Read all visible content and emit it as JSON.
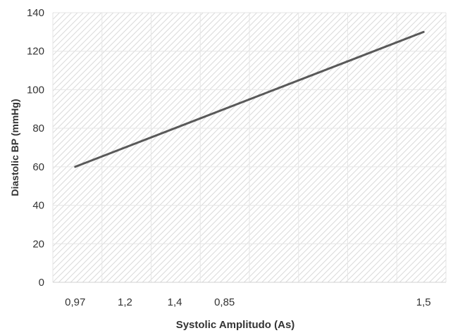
{
  "chart_data": {
    "type": "line",
    "title": "",
    "xlabel": "Systolic Amplitudo (As)",
    "ylabel": "Diastolic BP (mmHg)",
    "x_scale": "categorical-positioned",
    "x_ticks": [
      {
        "label": "0,97",
        "pos": 0
      },
      {
        "label": "1,2",
        "pos": 1
      },
      {
        "label": "1,4",
        "pos": 2
      },
      {
        "label": "0,85",
        "pos": 3
      },
      {
        "label": "1,5",
        "pos": 7
      }
    ],
    "x_range": [
      -0.45,
      7.45
    ],
    "ylim": [
      0,
      140
    ],
    "y_ticks": [
      0,
      20,
      40,
      60,
      80,
      100,
      120,
      140
    ],
    "series": [
      {
        "name": "",
        "color": "#595959",
        "points": [
          {
            "x_pos": 0,
            "y": 60
          },
          {
            "x_pos": 7,
            "y": 130
          }
        ]
      }
    ],
    "grid": true,
    "legend": "none",
    "plot_background": "diagonal hatch"
  }
}
